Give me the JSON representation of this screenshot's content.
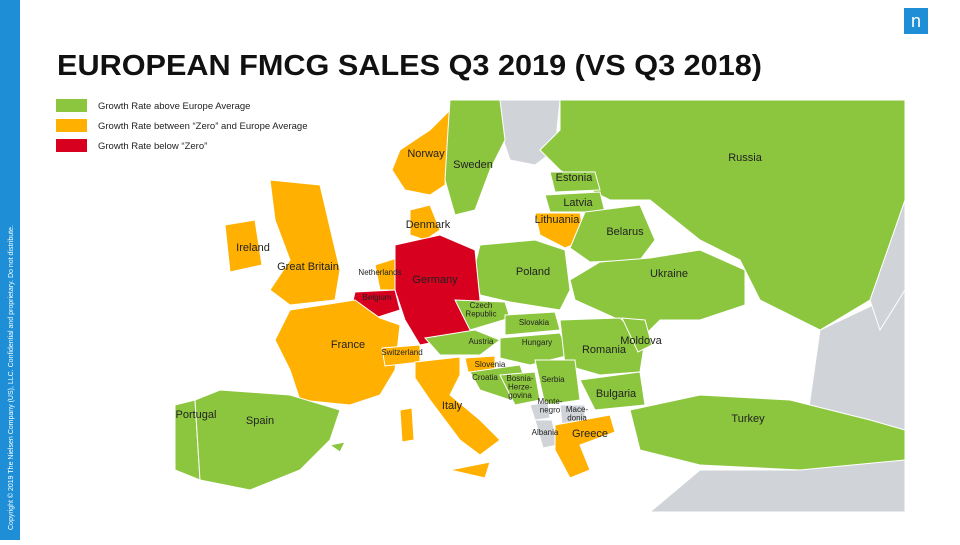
{
  "header": {
    "title": "EUROPEAN FMCG SALES Q3 2019 (VS Q3 2018)",
    "logo": "n"
  },
  "footer": {
    "copyright": "Copyright © 2019 The Nielsen Company (US), LLC. Confidential and proprietary. Do not distribute."
  },
  "legend": [
    {
      "label": "Growth Rate above Europe Average",
      "color": "#8cc63f"
    },
    {
      "label": "Growth Rate between “Zero” and Europe Average",
      "color": "#ffb000"
    },
    {
      "label": "Growth Rate below “Zero”",
      "color": "#d7001e"
    }
  ],
  "countries": [
    {
      "label": "Norway",
      "color": "#ffb000"
    },
    {
      "label": "Sweden",
      "color": "#8cc63f"
    },
    {
      "label": "Russia",
      "color": "#8cc63f"
    },
    {
      "label": "Estonia",
      "color": "#8cc63f"
    },
    {
      "label": "Latvia",
      "color": "#8cc63f"
    },
    {
      "label": "Lithuania",
      "color": "#ffb000"
    },
    {
      "label": "Denmark",
      "color": "#ffb000"
    },
    {
      "label": "Belarus",
      "color": "#8cc63f"
    },
    {
      "label": "Ireland",
      "color": "#ffb000"
    },
    {
      "label": "Great Britain",
      "color": "#ffb000"
    },
    {
      "label": "Netherlands",
      "color": "#ffb000"
    },
    {
      "label": "Poland",
      "color": "#8cc63f"
    },
    {
      "label": "Ukraine",
      "color": "#8cc63f"
    },
    {
      "label": "Germany",
      "color": "#d7001e"
    },
    {
      "label": "Belgium",
      "color": "#d7001e"
    },
    {
      "label": "Czech\nRepublic",
      "color": "#8cc63f"
    },
    {
      "label": "Slovakia",
      "color": "#8cc63f"
    },
    {
      "label": "Austria",
      "color": "#8cc63f"
    },
    {
      "label": "Hungary",
      "color": "#8cc63f"
    },
    {
      "label": "France",
      "color": "#ffb000"
    },
    {
      "label": "Romania",
      "color": "#8cc63f"
    },
    {
      "label": "Moldova",
      "color": "#8cc63f"
    },
    {
      "label": "Switzerland",
      "color": "#ffb000"
    },
    {
      "label": "Slovenia",
      "color": "#ffb000"
    },
    {
      "label": "Croatia",
      "color": "#8cc63f"
    },
    {
      "label": "Bosnia-\nHerze-\ngovina",
      "color": "#8cc63f"
    },
    {
      "label": "Serbia",
      "color": "#8cc63f"
    },
    {
      "label": "Bulgaria",
      "color": "#8cc63f"
    },
    {
      "label": "Portugal",
      "color": "#8cc63f"
    },
    {
      "label": "Spain",
      "color": "#8cc63f"
    },
    {
      "label": "Italy",
      "color": "#ffb000"
    },
    {
      "label": "Monte-\nnegro",
      "color": "#d0d3d8"
    },
    {
      "label": "Mace-\ndonia",
      "color": "#d0d3d8"
    },
    {
      "label": "Turkey",
      "color": "#8cc63f"
    },
    {
      "label": "Albania",
      "color": "#d0d3d8"
    },
    {
      "label": "Greece",
      "color": "#ffb000"
    }
  ]
}
